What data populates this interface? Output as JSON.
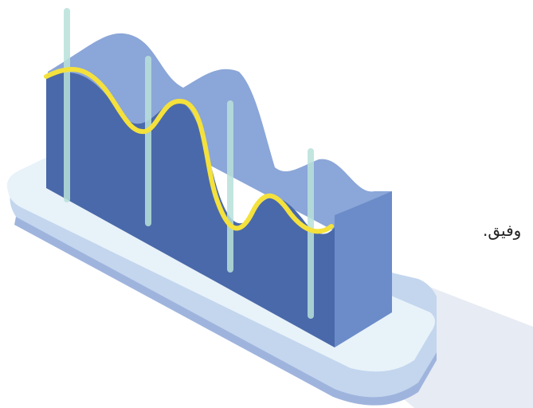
{
  "partial_text": "وفيق.",
  "colors": {
    "base_top": "#e9f3fa",
    "base_side": "#bcd3ee",
    "base_edge": "#a8bfe3",
    "shadow": "#dfe5ef",
    "panel_front": "#4a69aa",
    "panel_side": "#6a8bc8",
    "panel_top": "#88a4d6",
    "trend_line": "#f4e13c",
    "grid_poles": "#b7e0d9"
  },
  "icons": [
    "isometric-wave-chart-illustration"
  ]
}
